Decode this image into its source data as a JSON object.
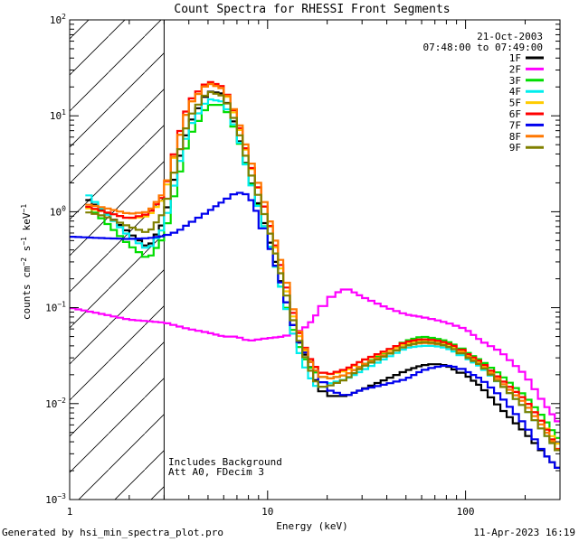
{
  "chart_data": {
    "type": "line",
    "title": "Count Spectra for RHESSI Front Segments",
    "xlabel": "Energy (keV)",
    "ylabel_main": "counts cm",
    "ylabel_unit2": "s",
    "ylabel_unit3": "keV",
    "ylabel_exp2": "−2",
    "ylabel_exp1": "−1",
    "ylabel_exp3": "−1",
    "x_scale": "log",
    "y_scale": "log",
    "xlim": [
      1,
      300
    ],
    "ylim": [
      0.001,
      100
    ],
    "x_ticks": [
      {
        "value": 1,
        "label": "1"
      },
      {
        "value": 10,
        "label": "10"
      },
      {
        "value": 100,
        "label": "100"
      }
    ],
    "y_ticks": [
      {
        "value": 0.001,
        "base": "10",
        "exp": "−3"
      },
      {
        "value": 0.01,
        "base": "10",
        "exp": "−2"
      },
      {
        "value": 0.1,
        "base": "10",
        "exp": "−1"
      },
      {
        "value": 1,
        "base": "10",
        "exp": "0"
      },
      {
        "value": 10,
        "base": "10",
        "exp": "1"
      },
      {
        "value": 100,
        "base": "10",
        "exp": "2"
      }
    ],
    "date": "21-Oct-2003",
    "time_range": "07:48:00 to 07:49:00",
    "attenuator_cutoff_keV": 3,
    "annotations": [
      "Includes Background",
      "Att A0, FDecim 3"
    ],
    "legend_position": "top-right",
    "series": [
      {
        "name": "1F",
        "color": "#000000",
        "x": [
          1.2,
          1.5,
          2,
          2.5,
          3,
          3.5,
          4,
          5,
          6,
          7,
          8,
          10,
          12,
          14,
          16,
          18,
          20,
          25,
          30,
          40,
          50,
          60,
          70,
          80,
          90,
          100,
          120,
          150,
          200,
          250,
          300
        ],
        "y": [
          1.4,
          1.0,
          0.6,
          0.42,
          0.8,
          3,
          8,
          18,
          17,
          7,
          2.5,
          0.6,
          0.15,
          0.05,
          0.028,
          0.015,
          0.012,
          0.012,
          0.014,
          0.018,
          0.022,
          0.025,
          0.026,
          0.025,
          0.022,
          0.02,
          0.015,
          0.009,
          0.005,
          0.003,
          0.002
        ]
      },
      {
        "name": "2F",
        "color": "#ff00ff",
        "x": [
          1,
          1.5,
          2,
          3,
          4,
          5,
          6,
          7,
          8,
          10,
          12,
          14,
          16,
          18,
          20,
          22,
          25,
          30,
          40,
          50,
          60,
          70,
          80,
          100,
          120,
          150,
          200,
          250,
          300
        ],
        "y": [
          0.1,
          0.085,
          0.075,
          0.07,
          0.06,
          0.055,
          0.05,
          0.05,
          0.045,
          0.048,
          0.05,
          0.055,
          0.065,
          0.09,
          0.12,
          0.14,
          0.16,
          0.13,
          0.1,
          0.085,
          0.08,
          0.075,
          0.07,
          0.06,
          0.045,
          0.035,
          0.02,
          0.01,
          0.006
        ]
      },
      {
        "name": "3F",
        "color": "#00dd00",
        "x": [
          1.2,
          1.5,
          2,
          2.5,
          3,
          3.5,
          4,
          5,
          6,
          7,
          8,
          10,
          12,
          14,
          16,
          18,
          20,
          25,
          30,
          40,
          50,
          60,
          70,
          80,
          90,
          100,
          120,
          150,
          200,
          250,
          300
        ],
        "y": [
          1.2,
          0.8,
          0.45,
          0.32,
          0.55,
          2,
          6,
          13,
          13,
          6.5,
          2.5,
          0.55,
          0.13,
          0.045,
          0.025,
          0.02,
          0.018,
          0.02,
          0.025,
          0.035,
          0.045,
          0.05,
          0.048,
          0.045,
          0.04,
          0.035,
          0.028,
          0.02,
          0.012,
          0.007,
          0.004
        ]
      },
      {
        "name": "4F",
        "color": "#00eeee",
        "x": [
          1.2,
          1.5,
          2,
          2.5,
          3,
          3.5,
          4,
          5,
          6,
          7,
          8,
          10,
          12,
          14,
          16,
          18,
          20,
          25,
          30,
          40,
          50,
          60,
          70,
          80,
          90,
          100,
          120,
          150,
          200,
          250,
          300
        ],
        "y": [
          1.6,
          1.0,
          0.55,
          0.4,
          0.7,
          2.6,
          7.5,
          15,
          14,
          6.8,
          2.4,
          0.55,
          0.13,
          0.04,
          0.02,
          0.014,
          0.016,
          0.018,
          0.022,
          0.03,
          0.038,
          0.04,
          0.04,
          0.038,
          0.034,
          0.03,
          0.024,
          0.016,
          0.009,
          0.005,
          0.003
        ]
      },
      {
        "name": "5F",
        "color": "#ffcc00",
        "x": [
          1.2,
          1.5,
          2,
          2.5,
          3,
          3.5,
          4,
          5,
          6,
          7,
          8,
          10,
          12,
          14,
          16,
          18,
          20,
          25,
          30,
          40,
          50,
          60,
          70,
          80,
          90,
          100,
          120,
          150,
          200,
          250,
          300
        ],
        "y": [
          1.1,
          1.0,
          0.85,
          0.9,
          1.4,
          5,
          13,
          22,
          19,
          9,
          3.5,
          0.9,
          0.2,
          0.06,
          0.03,
          0.022,
          0.02,
          0.022,
          0.028,
          0.035,
          0.042,
          0.046,
          0.045,
          0.042,
          0.038,
          0.033,
          0.026,
          0.018,
          0.011,
          0.006,
          0.0035
        ]
      },
      {
        "name": "6F",
        "color": "#ff0000",
        "x": [
          1.2,
          1.5,
          2,
          2.5,
          3,
          3.5,
          4,
          5,
          6,
          7,
          8,
          10,
          12,
          14,
          16,
          18,
          20,
          25,
          30,
          40,
          50,
          60,
          70,
          80,
          90,
          100,
          120,
          150,
          200,
          250,
          300
        ],
        "y": [
          1.15,
          1.0,
          0.85,
          0.95,
          1.5,
          5.5,
          14,
          23,
          20,
          9.5,
          3.6,
          0.9,
          0.22,
          0.065,
          0.032,
          0.022,
          0.02,
          0.023,
          0.028,
          0.036,
          0.044,
          0.047,
          0.046,
          0.043,
          0.039,
          0.034,
          0.027,
          0.018,
          0.011,
          0.006,
          0.003
        ]
      },
      {
        "name": "7F",
        "color": "#0000ee",
        "x": [
          1,
          1.5,
          2,
          2.5,
          3,
          3.5,
          4,
          5,
          6,
          7,
          8,
          9,
          10,
          12,
          14,
          16,
          18,
          20,
          25,
          30,
          40,
          50,
          60,
          70,
          80,
          90,
          100,
          120,
          150,
          200,
          250,
          300
        ],
        "y": [
          0.55,
          0.53,
          0.52,
          0.53,
          0.56,
          0.62,
          0.75,
          1.0,
          1.3,
          1.6,
          1.5,
          0.9,
          0.5,
          0.15,
          0.05,
          0.03,
          0.02,
          0.014,
          0.012,
          0.014,
          0.016,
          0.018,
          0.022,
          0.024,
          0.025,
          0.024,
          0.022,
          0.018,
          0.012,
          0.006,
          0.003,
          0.002
        ]
      },
      {
        "name": "8F",
        "color": "#ff7700",
        "x": [
          1.2,
          1.5,
          2,
          2.5,
          3,
          3.5,
          4,
          5,
          6,
          7,
          8,
          10,
          12,
          14,
          16,
          18,
          20,
          25,
          30,
          40,
          50,
          60,
          70,
          80,
          90,
          100,
          120,
          150,
          200,
          250,
          300
        ],
        "y": [
          1.2,
          1.1,
          0.95,
          1.0,
          1.6,
          5,
          13,
          22,
          19,
          10,
          4,
          1.0,
          0.25,
          0.07,
          0.03,
          0.02,
          0.018,
          0.02,
          0.025,
          0.033,
          0.04,
          0.043,
          0.042,
          0.04,
          0.036,
          0.032,
          0.025,
          0.017,
          0.01,
          0.0055,
          0.003
        ]
      },
      {
        "name": "9F",
        "color": "#808000",
        "x": [
          1.2,
          1.5,
          2,
          2.5,
          3,
          3.5,
          4,
          5,
          6,
          7,
          8,
          10,
          12,
          14,
          16,
          18,
          20,
          25,
          30,
          40,
          50,
          60,
          70,
          80,
          90,
          100,
          120,
          150,
          200,
          250,
          300
        ],
        "y": [
          1.0,
          0.9,
          0.7,
          0.6,
          1.0,
          3.5,
          9.5,
          18,
          16,
          8,
          3,
          0.75,
          0.18,
          0.055,
          0.025,
          0.015,
          0.015,
          0.018,
          0.024,
          0.032,
          0.04,
          0.044,
          0.043,
          0.04,
          0.036,
          0.031,
          0.025,
          0.016,
          0.009,
          0.005,
          0.003
        ]
      }
    ]
  },
  "footer": {
    "left": "Generated by hsi_min_spectra_plot.pro",
    "right": "11-Apr-2023 16:19"
  }
}
